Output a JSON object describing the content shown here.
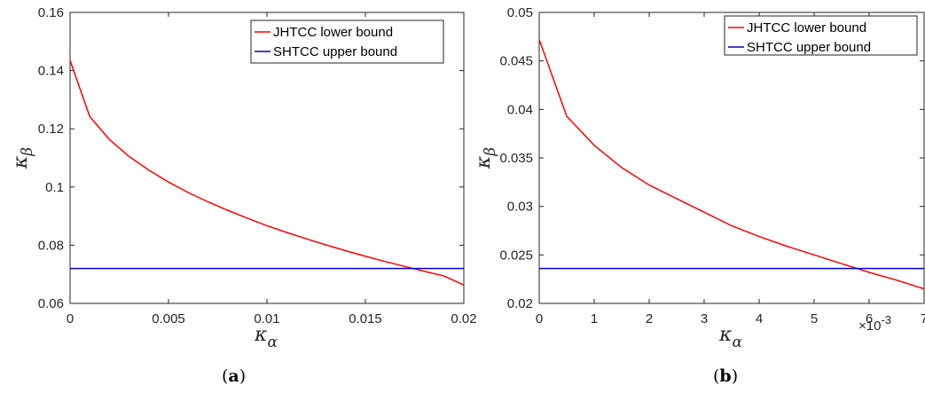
{
  "chart_data": [
    {
      "type": "line",
      "caption_letter": "a",
      "xlabel_symbol": "κ",
      "xlabel_sub": "α",
      "ylabel_symbol": "κ",
      "ylabel_sub": "β",
      "xlim": [
        0,
        0.02
      ],
      "ylim": [
        0.06,
        0.16
      ],
      "x_ticks": [
        0,
        0.005,
        0.01,
        0.015,
        0.02
      ],
      "x_tick_labels": [
        "0",
        "0.005",
        "0.01",
        "0.015",
        "0.02"
      ],
      "y_ticks": [
        0.06,
        0.08,
        0.1,
        0.12,
        0.14,
        0.16
      ],
      "y_tick_labels": [
        "0.06",
        "0.08",
        "0.1",
        "0.12",
        "0.14",
        "0.16"
      ],
      "x_exponent": "",
      "legend_position": "top-right",
      "grid": false,
      "series": [
        {
          "name": "JHTCC lower bound",
          "color": "#ff0000",
          "x": [
            0,
            0.001,
            0.002,
            0.003,
            0.004,
            0.005,
            0.006,
            0.007,
            0.008,
            0.009,
            0.01,
            0.011,
            0.012,
            0.013,
            0.014,
            0.015,
            0.016,
            0.017,
            0.018,
            0.019,
            0.02
          ],
          "y": [
            0.1435,
            0.1242,
            0.1163,
            0.1105,
            0.1058,
            0.1017,
            0.0981,
            0.0949,
            0.092,
            0.0893,
            0.0867,
            0.0844,
            0.0822,
            0.0801,
            0.0781,
            0.0762,
            0.0744,
            0.0727,
            0.071,
            0.0694,
            0.0663
          ]
        },
        {
          "name": "SHTCC upper bound",
          "color": "#0000cc",
          "x": [
            0,
            0.02
          ],
          "y": [
            0.072,
            0.072
          ]
        }
      ]
    },
    {
      "type": "line",
      "caption_letter": "b",
      "xlabel_symbol": "κ",
      "xlabel_sub": "α",
      "ylabel_symbol": "κ",
      "ylabel_sub": "β",
      "xlim": [
        0,
        7
      ],
      "ylim": [
        0.02,
        0.05
      ],
      "x_ticks": [
        0,
        1,
        2,
        3,
        4,
        5,
        6,
        7
      ],
      "x_tick_labels": [
        "0",
        "1",
        "2",
        "3",
        "4",
        "5",
        "6",
        "7"
      ],
      "y_ticks": [
        0.02,
        0.025,
        0.03,
        0.035,
        0.04,
        0.045,
        0.05
      ],
      "y_tick_labels": [
        "0.02",
        "0.025",
        "0.03",
        "0.035",
        "0.04",
        "0.045",
        "0.05"
      ],
      "x_exponent": "×10",
      "x_exponent_power": "-3",
      "legend_position": "top-right",
      "grid": false,
      "series": [
        {
          "name": "JHTCC lower bound",
          "color": "#ff0000",
          "x": [
            0,
            0.5,
            1,
            1.5,
            2,
            2.5,
            3,
            3.5,
            4,
            4.5,
            5,
            5.5,
            6,
            6.5,
            7
          ],
          "y": [
            0.0472,
            0.0393,
            0.0363,
            0.034,
            0.0322,
            0.0308,
            0.0294,
            0.028,
            0.0269,
            0.0259,
            0.025,
            0.0241,
            0.0232,
            0.0224,
            0.0215
          ]
        },
        {
          "name": "SHTCC upper bound",
          "color": "#0000cc",
          "x": [
            0,
            7
          ],
          "y": [
            0.0236,
            0.0236
          ]
        }
      ]
    }
  ]
}
